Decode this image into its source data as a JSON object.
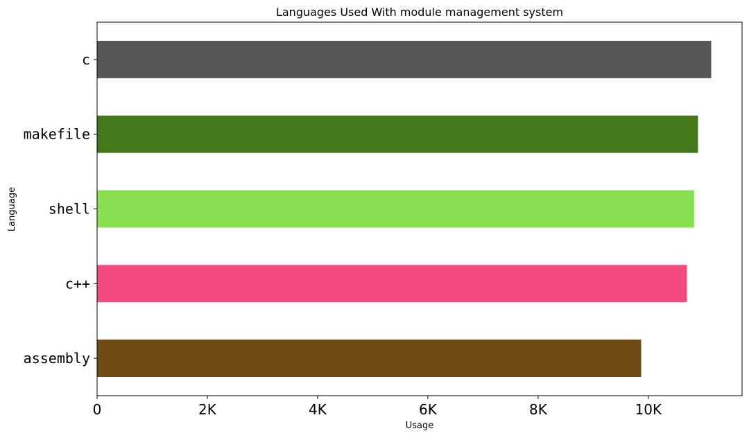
{
  "chart_data": {
    "type": "bar",
    "orientation": "horizontal",
    "title": "Languages Used With module management system",
    "xlabel": "Usage",
    "ylabel": "Language",
    "categories": [
      "c",
      "makefile",
      "shell",
      "c++",
      "assembly"
    ],
    "values": [
      11140,
      10900,
      10830,
      10700,
      9870
    ],
    "colors": [
      "#555555",
      "#427819",
      "#89e051",
      "#f34b7d",
      "#6e4c13"
    ],
    "xlim": [
      0,
      11700
    ],
    "x_ticks": [
      0,
      2000,
      4000,
      6000,
      8000,
      10000
    ],
    "x_tick_labels": [
      "0",
      "2K",
      "4K",
      "6K",
      "8K",
      "10K"
    ],
    "grid": false,
    "legend": "none"
  }
}
